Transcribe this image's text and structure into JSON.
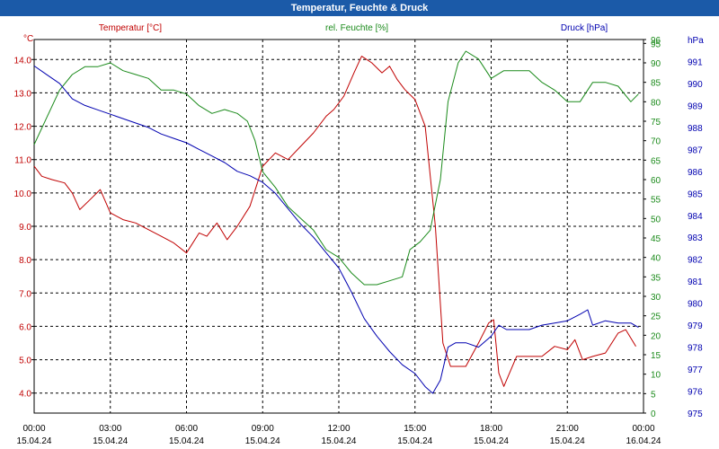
{
  "window": {
    "title": "Temperatur, Feuchte & Druck"
  },
  "chart_data": {
    "type": "line",
    "title": "Temperatur, Feuchte & Druck",
    "x_labels": [
      {
        "time": "00:00",
        "date": "15.04.24"
      },
      {
        "time": "03:00",
        "date": "15.04.24"
      },
      {
        "time": "06:00",
        "date": "15.04.24"
      },
      {
        "time": "09:00",
        "date": "15.04.24"
      },
      {
        "time": "12:00",
        "date": "15.04.24"
      },
      {
        "time": "15:00",
        "date": "15.04.24"
      },
      {
        "time": "18:00",
        "date": "15.04.24"
      },
      {
        "time": "21:00",
        "date": "15.04.24"
      },
      {
        "time": "00:00",
        "date": "16.04.24"
      }
    ],
    "x_range_hours": [
      0,
      24
    ],
    "grid": true,
    "axes": {
      "temperature": {
        "label": "Temperatur [°C]",
        "unit": "°C",
        "side": "left",
        "range": [
          3.4,
          14.6
        ],
        "color": "#c00000",
        "ticks": [
          "14.0",
          "13.0",
          "12.0",
          "11.0",
          "10.0",
          "9.0",
          "8.0",
          "7.0",
          "6.0",
          "5.0",
          "4.0"
        ]
      },
      "humidity": {
        "label": "rel. Feuchte [%]",
        "unit": "%",
        "side": "right",
        "range": [
          0,
          96
        ],
        "color": "#1a8a1a",
        "ticks": [
          "96",
          "95",
          "90",
          "85",
          "80",
          "75",
          "70",
          "65",
          "60",
          "55",
          "50",
          "45",
          "40",
          "35",
          "30",
          "25",
          "20",
          "15",
          "10",
          "5",
          "0"
        ]
      },
      "pressure": {
        "label": "Druck [hPa]",
        "unit": "hPa",
        "side": "right",
        "range": [
          975,
          992
        ],
        "color": "#0000b0",
        "ticks": [
          "991",
          "990",
          "989",
          "988",
          "987",
          "986",
          "985",
          "984",
          "983",
          "982",
          "981",
          "980",
          "979",
          "978",
          "977",
          "976",
          "975"
        ]
      }
    },
    "series": [
      {
        "name": "Temperatur",
        "axis": "temperature",
        "color": "#c00000",
        "points": [
          [
            0,
            10.8
          ],
          [
            0.3,
            10.5
          ],
          [
            0.7,
            10.4
          ],
          [
            1.2,
            10.3
          ],
          [
            1.5,
            10.0
          ],
          [
            1.8,
            9.5
          ],
          [
            2.2,
            9.8
          ],
          [
            2.6,
            10.1
          ],
          [
            3.0,
            9.4
          ],
          [
            3.5,
            9.2
          ],
          [
            4.0,
            9.1
          ],
          [
            4.5,
            8.9
          ],
          [
            5.0,
            8.7
          ],
          [
            5.5,
            8.5
          ],
          [
            6.0,
            8.2
          ],
          [
            6.5,
            8.8
          ],
          [
            6.8,
            8.7
          ],
          [
            7.2,
            9.1
          ],
          [
            7.6,
            8.6
          ],
          [
            8.0,
            9.0
          ],
          [
            8.5,
            9.6
          ],
          [
            9.0,
            10.8
          ],
          [
            9.5,
            11.2
          ],
          [
            10.0,
            11.0
          ],
          [
            10.5,
            11.4
          ],
          [
            11.0,
            11.8
          ],
          [
            11.5,
            12.3
          ],
          [
            11.8,
            12.5
          ],
          [
            12.2,
            12.9
          ],
          [
            12.6,
            13.6
          ],
          [
            12.9,
            14.1
          ],
          [
            13.3,
            13.9
          ],
          [
            13.7,
            13.6
          ],
          [
            14.0,
            13.8
          ],
          [
            14.3,
            13.4
          ],
          [
            14.6,
            13.1
          ],
          [
            15.0,
            12.8
          ],
          [
            15.4,
            12.0
          ],
          [
            15.8,
            9.0
          ],
          [
            16.1,
            5.5
          ],
          [
            16.4,
            4.8
          ],
          [
            17.0,
            4.8
          ],
          [
            17.5,
            5.5
          ],
          [
            17.9,
            6.1
          ],
          [
            18.1,
            6.2
          ],
          [
            18.3,
            4.6
          ],
          [
            18.5,
            4.2
          ],
          [
            19.0,
            5.1
          ],
          [
            19.5,
            5.1
          ],
          [
            20.0,
            5.1
          ],
          [
            20.5,
            5.4
          ],
          [
            21.0,
            5.3
          ],
          [
            21.3,
            5.6
          ],
          [
            21.6,
            5.0
          ],
          [
            22.0,
            5.1
          ],
          [
            22.5,
            5.2
          ],
          [
            23.0,
            5.8
          ],
          [
            23.3,
            5.9
          ],
          [
            23.7,
            5.4
          ]
        ]
      },
      {
        "name": "rel. Feuchte",
        "axis": "humidity",
        "color": "#1a8a1a",
        "points": [
          [
            0,
            69
          ],
          [
            0.5,
            76
          ],
          [
            1.0,
            83
          ],
          [
            1.5,
            87
          ],
          [
            2.0,
            89
          ],
          [
            2.5,
            89
          ],
          [
            3.0,
            90
          ],
          [
            3.5,
            88
          ],
          [
            4.0,
            87
          ],
          [
            4.5,
            86
          ],
          [
            5.0,
            83
          ],
          [
            5.5,
            83
          ],
          [
            6.0,
            82
          ],
          [
            6.5,
            79
          ],
          [
            7.0,
            77
          ],
          [
            7.5,
            78
          ],
          [
            8.0,
            77
          ],
          [
            8.4,
            75
          ],
          [
            8.7,
            70
          ],
          [
            9.0,
            62
          ],
          [
            9.5,
            58
          ],
          [
            10.0,
            53
          ],
          [
            10.5,
            50
          ],
          [
            11.0,
            47
          ],
          [
            11.5,
            42
          ],
          [
            12.0,
            40
          ],
          [
            12.5,
            36
          ],
          [
            13.0,
            33
          ],
          [
            13.5,
            33
          ],
          [
            14.0,
            34
          ],
          [
            14.5,
            35
          ],
          [
            14.8,
            42
          ],
          [
            15.2,
            44
          ],
          [
            15.6,
            47
          ],
          [
            16.0,
            60
          ],
          [
            16.3,
            80
          ],
          [
            16.7,
            90
          ],
          [
            17.0,
            93
          ],
          [
            17.5,
            91
          ],
          [
            18.0,
            86
          ],
          [
            18.5,
            88
          ],
          [
            19.0,
            88
          ],
          [
            19.5,
            88
          ],
          [
            20.0,
            85
          ],
          [
            20.5,
            83
          ],
          [
            21.0,
            80
          ],
          [
            21.5,
            80
          ],
          [
            22.0,
            85
          ],
          [
            22.5,
            85
          ],
          [
            23.0,
            84
          ],
          [
            23.5,
            80
          ],
          [
            23.8,
            82
          ]
        ]
      },
      {
        "name": "Druck",
        "axis": "pressure",
        "color": "#0000b0",
        "points": [
          [
            0,
            990.8
          ],
          [
            0.5,
            990.4
          ],
          [
            1.0,
            990.0
          ],
          [
            1.5,
            989.3
          ],
          [
            2.0,
            989.0
          ],
          [
            2.5,
            988.8
          ],
          [
            3.0,
            988.6
          ],
          [
            3.5,
            988.4
          ],
          [
            4.0,
            988.2
          ],
          [
            4.5,
            988.0
          ],
          [
            5.0,
            987.7
          ],
          [
            5.5,
            987.5
          ],
          [
            6.0,
            987.3
          ],
          [
            6.5,
            987.0
          ],
          [
            7.0,
            986.7
          ],
          [
            7.5,
            986.4
          ],
          [
            8.0,
            986.0
          ],
          [
            8.5,
            985.8
          ],
          [
            9.0,
            985.5
          ],
          [
            9.5,
            985.0
          ],
          [
            10.0,
            984.3
          ],
          [
            10.5,
            983.6
          ],
          [
            11.0,
            983.0
          ],
          [
            11.5,
            982.3
          ],
          [
            12.0,
            981.6
          ],
          [
            12.5,
            980.5
          ],
          [
            13.0,
            979.3
          ],
          [
            13.5,
            978.5
          ],
          [
            14.0,
            977.8
          ],
          [
            14.5,
            977.2
          ],
          [
            15.0,
            976.8
          ],
          [
            15.4,
            976.2
          ],
          [
            15.7,
            975.9
          ],
          [
            16.0,
            976.5
          ],
          [
            16.3,
            978.0
          ],
          [
            16.6,
            978.2
          ],
          [
            17.0,
            978.2
          ],
          [
            17.5,
            978.0
          ],
          [
            18.0,
            978.5
          ],
          [
            18.3,
            979.0
          ],
          [
            18.6,
            978.8
          ],
          [
            19.0,
            978.8
          ],
          [
            19.5,
            978.8
          ],
          [
            20.0,
            979.0
          ],
          [
            20.5,
            979.1
          ],
          [
            21.0,
            979.2
          ],
          [
            21.5,
            979.5
          ],
          [
            21.8,
            979.7
          ],
          [
            22.0,
            979.0
          ],
          [
            22.5,
            979.2
          ],
          [
            23.0,
            979.1
          ],
          [
            23.5,
            979.1
          ],
          [
            23.8,
            978.9
          ]
        ]
      }
    ]
  }
}
